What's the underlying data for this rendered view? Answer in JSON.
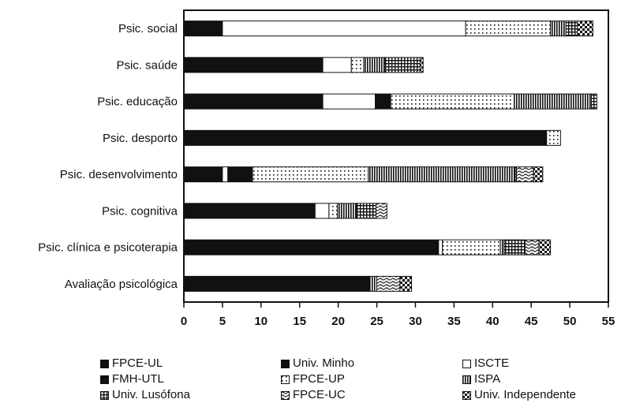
{
  "chart_data": {
    "type": "bar",
    "orientation": "horizontal",
    "stacked": true,
    "title": "",
    "xlabel": "",
    "ylabel": "",
    "xlim": [
      0,
      55
    ],
    "xticks": [
      0,
      5,
      10,
      15,
      20,
      25,
      30,
      35,
      40,
      45,
      50,
      55
    ],
    "grid": false,
    "legend_position": "bottom",
    "categories": [
      "Psic. social",
      "Psic. saúde",
      "Psic. educação",
      "Psic. desporto",
      "Psic. desenvolvimento",
      "Psic. cognitiva",
      "Psic. clínica e psicoterapia",
      "Avaliação psicológica"
    ],
    "series": [
      {
        "name": "FPCE-UL",
        "pattern": "solid",
        "values": [
          5,
          18,
          18,
          47,
          5,
          17,
          33,
          24
        ]
      },
      {
        "name": "Univ. Minho",
        "pattern": "solid",
        "values": [
          0,
          0,
          0,
          0,
          0,
          0,
          0,
          0
        ]
      },
      {
        "name": "ISCTE",
        "pattern": "white",
        "values": [
          31.5,
          3.7,
          6.8,
          0,
          0.7,
          1.8,
          0.5,
          0
        ]
      },
      {
        "name": "FMH-UTL",
        "pattern": "solid",
        "values": [
          0,
          0,
          2,
          0,
          3.2,
          0,
          0,
          0
        ]
      },
      {
        "name": "FPCE-UP",
        "pattern": "dots",
        "values": [
          11,
          1.6,
          16,
          1.8,
          15,
          1.1,
          7.5,
          0
        ]
      },
      {
        "name": "ISPA",
        "pattern": "vlines",
        "values": [
          2,
          2.7,
          10,
          0,
          19,
          2.5,
          0.5,
          1
        ]
      },
      {
        "name": "Univ. Lusófona",
        "pattern": "grid",
        "values": [
          1.5,
          4.6,
          0.7,
          0,
          0.2,
          2.5,
          2.7,
          0
        ]
      },
      {
        "name": "FPCE-UC",
        "pattern": "waves",
        "values": [
          0,
          0,
          0,
          0,
          2.2,
          1.4,
          1.8,
          3
        ]
      },
      {
        "name": "Univ. Independente",
        "pattern": "checker",
        "values": [
          2,
          0.4,
          0,
          0,
          1.2,
          0,
          1.5,
          1.5
        ]
      }
    ]
  },
  "legend": {
    "items": [
      {
        "label": "FPCE-UL",
        "pattern": "solid"
      },
      {
        "label": "Univ. Minho",
        "pattern": "solid"
      },
      {
        "label": "ISCTE",
        "pattern": "white"
      },
      {
        "label": "FMH-UTL",
        "pattern": "solid"
      },
      {
        "label": "FPCE-UP",
        "pattern": "dots"
      },
      {
        "label": "ISPA",
        "pattern": "vlines"
      },
      {
        "label": "Univ. Lusófona",
        "pattern": "grid"
      },
      {
        "label": "FPCE-UC",
        "pattern": "waves"
      },
      {
        "label": "Univ. Independente",
        "pattern": "checker"
      }
    ]
  }
}
